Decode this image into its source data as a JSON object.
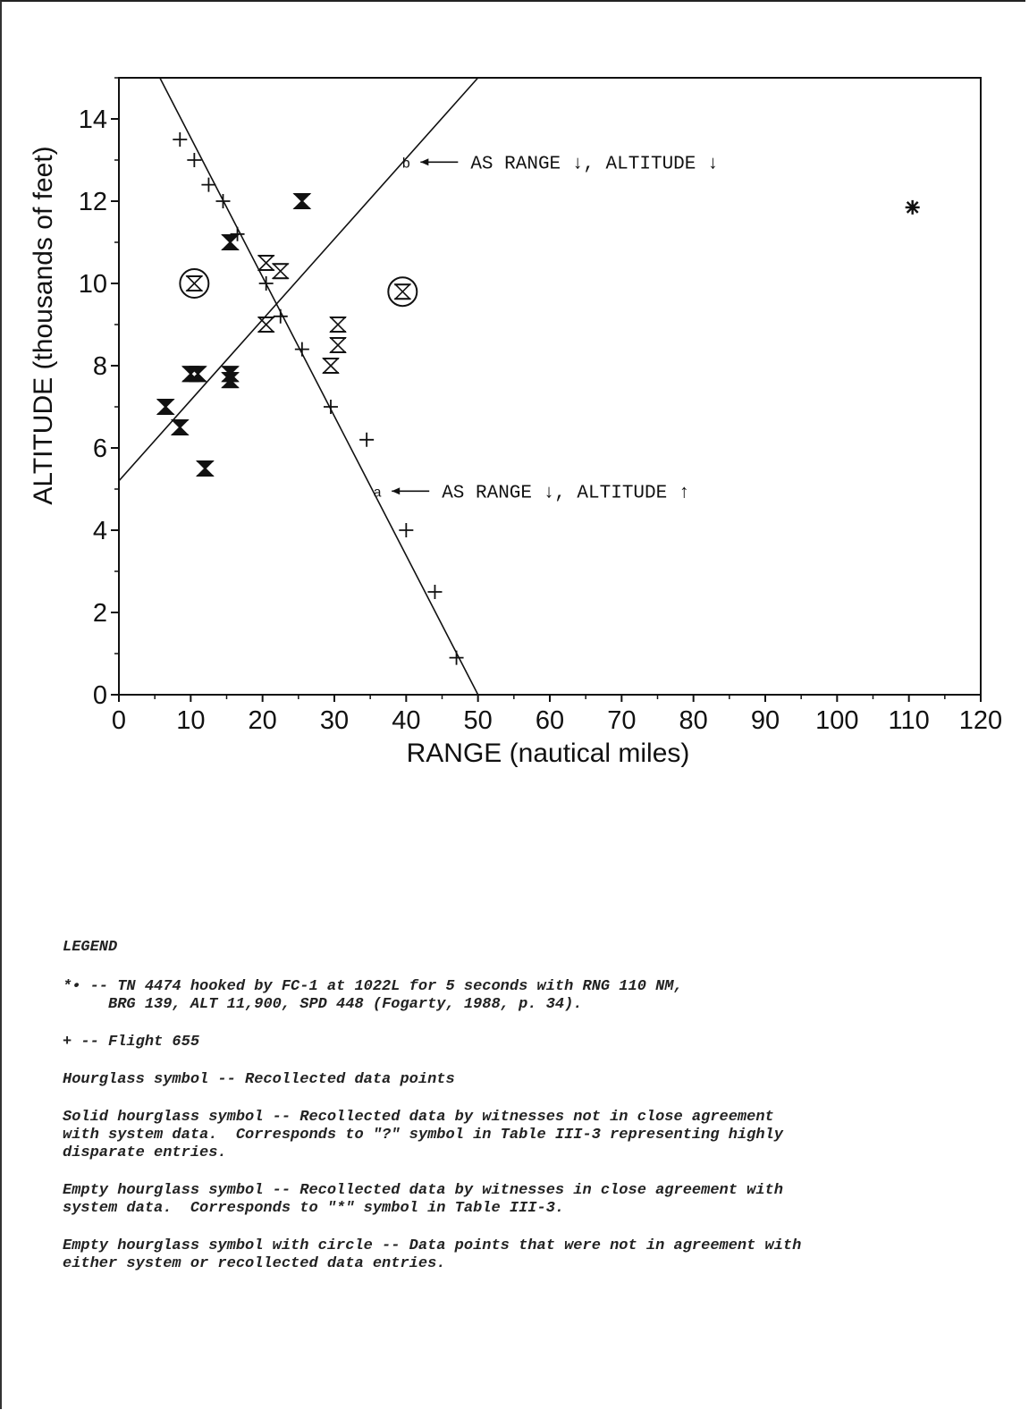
{
  "chart_data": {
    "type": "scatter",
    "xlabel": "RANGE (nautical miles)",
    "ylabel": "ALTITUDE (thousands of feet)",
    "xlim": [
      0,
      120
    ],
    "ylim": [
      0,
      15
    ],
    "x_ticks": [
      "0",
      "10",
      "20",
      "30",
      "40",
      "50",
      "60",
      "70",
      "80",
      "90",
      "100",
      "110",
      "120"
    ],
    "y_ticks": [
      "0",
      "2",
      "4",
      "6",
      "8",
      "10",
      "12",
      "14"
    ],
    "grid": false,
    "series": [
      {
        "name": "Flight 655",
        "marker": "plus",
        "points": [
          {
            "x": 8.5,
            "y": 13.5
          },
          {
            "x": 10.5,
            "y": 13.0
          },
          {
            "x": 12.5,
            "y": 12.4
          },
          {
            "x": 14.5,
            "y": 12.0
          },
          {
            "x": 16.5,
            "y": 11.2
          },
          {
            "x": 20.5,
            "y": 10.0
          },
          {
            "x": 22.5,
            "y": 9.2
          },
          {
            "x": 25.5,
            "y": 8.4
          },
          {
            "x": 29.5,
            "y": 7.0
          },
          {
            "x": 34.5,
            "y": 6.2
          },
          {
            "x": 40.0,
            "y": 4.0
          },
          {
            "x": 44.0,
            "y": 2.5
          },
          {
            "x": 47.0,
            "y": 0.9
          }
        ]
      },
      {
        "name": "Solid hourglass symbol",
        "marker": "hourglass-solid",
        "points": [
          {
            "x": 6.5,
            "y": 7.0
          },
          {
            "x": 8.5,
            "y": 6.5
          },
          {
            "x": 12.0,
            "y": 5.5
          },
          {
            "x": 10.0,
            "y": 7.8
          },
          {
            "x": 11.0,
            "y": 7.8
          },
          {
            "x": 15.5,
            "y": 7.8
          },
          {
            "x": 15.5,
            "y": 7.65
          },
          {
            "x": 15.5,
            "y": 11.0
          },
          {
            "x": 25.5,
            "y": 12.0
          }
        ]
      },
      {
        "name": "Empty hourglass symbol",
        "marker": "hourglass-empty",
        "points": [
          {
            "x": 20.5,
            "y": 10.5
          },
          {
            "x": 22.5,
            "y": 10.3
          },
          {
            "x": 20.5,
            "y": 9.0
          },
          {
            "x": 30.5,
            "y": 9.0
          },
          {
            "x": 30.5,
            "y": 8.5
          },
          {
            "x": 29.5,
            "y": 8.0
          }
        ]
      },
      {
        "name": "Empty hourglass symbol with circle",
        "marker": "hourglass-circle",
        "points": [
          {
            "x": 10.5,
            "y": 10.0
          },
          {
            "x": 39.5,
            "y": 9.8
          }
        ]
      },
      {
        "name": "TN 4474",
        "marker": "asterisk",
        "points": [
          {
            "x": 110.5,
            "y": 11.85
          }
        ]
      }
    ],
    "lines": [
      {
        "name": "a",
        "x": [
          5.7,
          50.0
        ],
        "y": [
          15.0,
          0.0
        ]
      },
      {
        "name": "b",
        "x": [
          0.0,
          50.0
        ],
        "y": [
          5.2,
          15.0
        ]
      }
    ],
    "annotations": [
      {
        "letter": "b",
        "text": "AS RANGE ↓, ALTITUDE ↓",
        "x": 40.0,
        "y": 12.95
      },
      {
        "letter": "a",
        "text": "AS RANGE ↓, ALTITUDE ↑",
        "x": 36.0,
        "y": 4.95
      }
    ]
  },
  "legend": {
    "title": "LEGEND",
    "asterisk_line": "*• -- TN 4474 hooked by FC-1 at 1022L for 5 seconds with RNG 110 NM,\n     BRG 139, ALT 11,900, SPD 448 (Fogarty, 1988, p. 34).",
    "plus_line": "+ -- Flight 655",
    "hourglass_line": "Hourglass symbol -- Recollected data points",
    "solid_line": "Solid hourglass symbol -- Recollected data by witnesses not in close agreement\nwith system data.  Corresponds to \"?\" symbol in Table III-3 representing highly\ndisparate entries.",
    "empty_line": "Empty hourglass symbol -- Recollected data by witnesses in close agreement with\nsystem data.  Corresponds to \"*\" symbol in Table III-3.",
    "circle_line": "Empty hourglass symbol with circle -- Data points that were not in agreement with\neither system or recollected data entries."
  }
}
